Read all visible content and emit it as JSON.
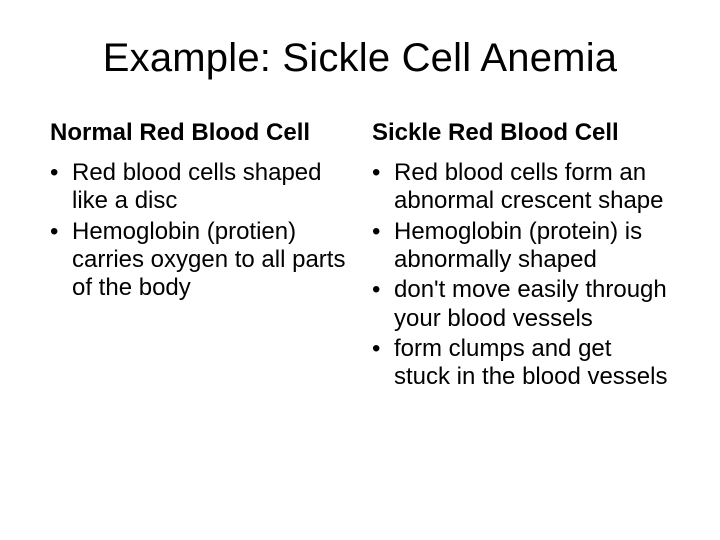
{
  "slide": {
    "background_color": "#ffffff",
    "text_color": "#000000",
    "title": "Example: Sickle Cell Anemia",
    "title_fontsize": 40,
    "heading_fontsize": 24,
    "bullet_fontsize": 24,
    "columns": [
      {
        "heading": "Normal Red Blood Cell",
        "bullets": [
          "Red blood cells shaped like a disc",
          "Hemoglobin (protien) carries oxygen to all parts of the body"
        ]
      },
      {
        "heading": "Sickle Red Blood Cell",
        "bullets": [
          "Red blood cells form an abnormal crescent shape",
          "Hemoglobin (protein) is abnormally shaped",
          "don't move easily through your blood vessels",
          "form clumps and get stuck in the blood vessels"
        ]
      }
    ]
  }
}
